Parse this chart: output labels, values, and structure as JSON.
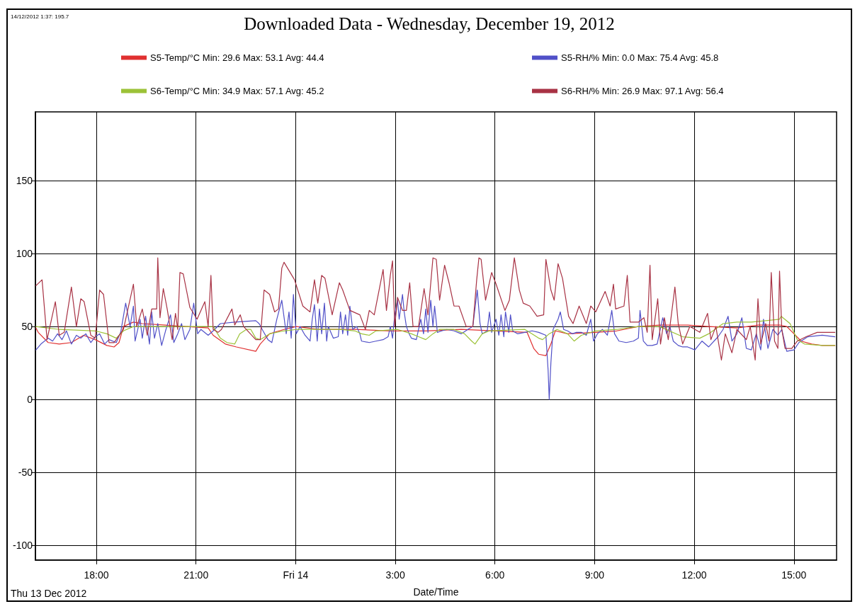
{
  "chart_data": {
    "type": "line",
    "title": "Downloaded Data - Wednesday, December 19, 2012",
    "xlabel": "Date/Time",
    "annotations": [
      "14/12/2012 1:37: 195.7",
      "Thu 13 Dec 2012"
    ],
    "xlim": [
      "2012-12-13T16:10",
      "2012-12-14T16:17"
    ],
    "xticks": [
      {
        "value": "2012-12-13T18:00",
        "label": "18:00"
      },
      {
        "value": "2012-12-13T21:00",
        "label": "21:00"
      },
      {
        "value": "2012-12-14T00:00",
        "label": "Fri 14"
      },
      {
        "value": "2012-12-14T03:00",
        "label": "3:00"
      },
      {
        "value": "2012-12-14T06:00",
        "label": "6:00"
      },
      {
        "value": "2012-12-14T09:00",
        "label": "9:00"
      },
      {
        "value": "2012-12-14T12:00",
        "label": "12:00"
      },
      {
        "value": "2012-12-14T15:00",
        "label": "15:00"
      }
    ],
    "ylim": [
      -110,
      197
    ],
    "yticks": [
      -100,
      -50,
      0,
      50,
      100,
      150
    ],
    "grid": true,
    "legend": "top",
    "line_style": "solid",
    "series": [
      {
        "name": "S5-Temp/°C Min: 29.6 Max: 53.1 Avg: 44.4",
        "color": "#e03030",
        "x": [
          "2012-12-13T16:11",
          "2012-12-13T16:15",
          "2012-12-13T16:33",
          "2012-12-13T16:53",
          "2012-12-13T17:15",
          "2012-12-13T17:37",
          "2012-12-13T17:58",
          "2012-12-13T18:19",
          "2012-12-13T18:32",
          "2012-12-13T18:41",
          "2012-12-13T18:49",
          "2012-12-13T19:07",
          "2012-12-13T19:23",
          "2012-12-13T20:05",
          "2012-12-13T20:40",
          "2012-12-13T21:22",
          "2012-12-13T21:31",
          "2012-12-13T21:53",
          "2012-12-13T22:13",
          "2012-12-13T22:48",
          "2012-12-13T22:56",
          "2012-12-13T23:13",
          "2012-12-13T23:39",
          "2012-12-14T00:01",
          "2012-12-14T00:43",
          "2012-12-14T01:47",
          "2012-12-14T02:51",
          "2012-12-14T03:55",
          "2012-12-14T04:59",
          "2012-12-14T06:02",
          "2012-12-14T06:58",
          "2012-12-14T07:10",
          "2012-12-14T07:19",
          "2012-12-14T07:32",
          "2012-12-14T07:41",
          "2012-12-14T07:49",
          "2012-12-14T08:11",
          "2012-12-14T09:02",
          "2012-12-14T09:40",
          "2012-12-14T10:19",
          "2012-12-14T10:57",
          "2012-12-14T11:48",
          "2012-12-14T12:26",
          "2012-12-14T13:17",
          "2012-12-14T13:56",
          "2012-12-14T14:34",
          "2012-12-14T14:47",
          "2012-12-14T15:00",
          "2012-12-14T15:13",
          "2012-12-14T15:32",
          "2012-12-14T15:51",
          "2012-12-14T16:14"
        ],
        "values": [
          49,
          46,
          39,
          38,
          39,
          44,
          41,
          37,
          36,
          39,
          50,
          53,
          52,
          51,
          50,
          49,
          44,
          38,
          36,
          33,
          38,
          45,
          48,
          50,
          48,
          48,
          47,
          47,
          48,
          47,
          46,
          35,
          31,
          30,
          38,
          47,
          45,
          46,
          47,
          50,
          51,
          51,
          50,
          49,
          51,
          51,
          50,
          45,
          40,
          38,
          37,
          37
        ]
      },
      {
        "name": "S5-RH/% Min: 0.0 Max: 75.4 Avg: 45.8",
        "color": "#5050c8",
        "x": [
          "2012-12-13T16:11",
          "2012-12-13T16:20",
          "2012-12-13T16:33",
          "2012-12-13T16:41",
          "2012-12-13T16:50",
          "2012-12-13T16:58",
          "2012-12-13T17:06",
          "2012-12-13T17:15",
          "2012-12-13T17:24",
          "2012-12-13T17:32",
          "2012-12-13T17:41",
          "2012-12-13T17:50",
          "2012-12-13T17:58",
          "2012-12-13T18:06",
          "2012-12-13T18:15",
          "2012-12-13T18:23",
          "2012-12-13T18:36",
          "2012-12-13T18:44",
          "2012-12-13T18:53",
          "2012-12-13T19:01",
          "2012-12-13T19:07",
          "2012-12-13T19:10",
          "2012-12-13T19:19",
          "2012-12-13T19:23",
          "2012-12-13T19:29",
          "2012-12-13T19:36",
          "2012-12-13T19:40",
          "2012-12-13T19:45",
          "2012-12-13T19:51",
          "2012-12-13T19:58",
          "2012-12-13T20:05",
          "2012-12-13T20:14",
          "2012-12-13T20:20",
          "2012-12-13T20:27",
          "2012-12-13T20:34",
          "2012-12-13T20:40",
          "2012-12-13T20:49",
          "2012-12-13T20:56",
          "2012-12-13T21:03",
          "2012-12-13T21:09",
          "2012-12-13T21:22",
          "2012-12-13T21:31",
          "2012-12-13T21:44",
          "2012-12-13T22:10",
          "2012-12-13T22:48",
          "2012-12-13T22:54",
          "2012-12-13T23:01",
          "2012-12-13T23:10",
          "2012-12-13T23:17",
          "2012-12-13T23:26",
          "2012-12-13T23:35",
          "2012-12-13T23:43",
          "2012-12-13T23:48",
          "2012-12-13T23:52",
          "2012-12-13T23:56",
          "2012-12-14T00:01",
          "2012-12-14T00:08",
          "2012-12-14T00:17",
          "2012-12-14T00:26",
          "2012-12-14T00:30",
          "2012-12-14T00:34",
          "2012-12-14T00:39",
          "2012-12-14T00:43",
          "2012-12-14T00:47",
          "2012-12-14T00:52",
          "2012-12-14T00:56",
          "2012-12-14T00:59",
          "2012-12-14T01:08",
          "2012-12-14T01:17",
          "2012-12-14T01:21",
          "2012-12-14T01:25",
          "2012-12-14T01:30",
          "2012-12-14T01:34",
          "2012-12-14T01:38",
          "2012-12-14T01:43",
          "2012-12-14T01:50",
          "2012-12-14T01:56",
          "2012-12-14T01:59",
          "2012-12-14T02:13",
          "2012-12-14T02:25",
          "2012-12-14T02:38",
          "2012-12-14T02:47",
          "2012-12-14T02:51",
          "2012-12-14T02:55",
          "2012-12-14T02:59",
          "2012-12-14T03:04",
          "2012-12-14T03:07",
          "2012-12-14T03:13",
          "2012-12-14T03:16",
          "2012-12-14T03:20",
          "2012-12-14T03:25",
          "2012-12-14T03:29",
          "2012-12-14T03:38",
          "2012-12-14T03:46",
          "2012-12-14T03:51",
          "2012-12-14T03:55",
          "2012-12-14T03:59",
          "2012-12-14T04:04",
          "2012-12-14T04:08",
          "2012-12-14T04:11",
          "2012-12-14T04:16",
          "2012-12-14T04:24",
          "2012-12-14T04:33",
          "2012-12-14T04:46",
          "2012-12-14T04:59",
          "2012-12-14T05:11",
          "2012-12-14T05:20",
          "2012-12-14T05:28",
          "2012-12-14T05:33",
          "2012-12-14T05:37",
          "2012-12-14T05:46",
          "2012-12-14T05:50",
          "2012-12-14T05:54",
          "2012-12-14T06:02",
          "2012-12-14T06:07",
          "2012-12-14T06:11",
          "2012-12-14T06:16",
          "2012-12-14T06:19",
          "2012-12-14T06:25",
          "2012-12-14T06:28",
          "2012-12-14T06:32",
          "2012-12-14T06:41",
          "2012-12-14T06:54",
          "2012-12-14T07:07",
          "2012-12-14T07:19",
          "2012-12-14T07:32",
          "2012-12-14T07:36",
          "2012-12-14T07:38",
          "2012-12-14T07:41",
          "2012-12-14T07:45",
          "2012-12-14T07:54",
          "2012-12-14T07:58",
          "2012-12-14T08:04",
          "2012-12-14T08:11",
          "2012-12-14T08:20",
          "2012-12-14T08:27",
          "2012-12-14T08:36",
          "2012-12-14T08:45",
          "2012-12-14T08:53",
          "2012-12-14T08:58",
          "2012-12-14T09:05",
          "2012-12-14T09:14",
          "2012-12-14T09:23",
          "2012-12-14T09:31",
          "2012-12-14T09:36",
          "2012-12-14T09:44",
          "2012-12-14T09:57",
          "2012-12-14T10:10",
          "2012-12-14T10:19",
          "2012-12-14T10:22",
          "2012-12-14T10:28",
          "2012-12-14T10:35",
          "2012-12-14T10:44",
          "2012-12-14T10:53",
          "2012-12-14T11:03",
          "2012-12-14T11:10",
          "2012-12-14T11:16",
          "2012-12-14T11:22",
          "2012-12-14T11:31",
          "2012-12-14T11:39",
          "2012-12-14T11:48",
          "2012-12-14T12:01",
          "2012-12-14T12:14",
          "2012-12-14T12:26",
          "2012-12-14T12:43",
          "2012-12-14T12:52",
          "2012-12-14T13:01",
          "2012-12-14T13:08",
          "2012-12-14T13:17",
          "2012-12-14T13:26",
          "2012-12-14T13:34",
          "2012-12-14T13:43",
          "2012-12-14T13:52",
          "2012-12-14T14:00",
          "2012-12-14T14:05",
          "2012-12-14T14:13",
          "2012-12-14T14:22",
          "2012-12-14T14:31",
          "2012-12-14T14:38",
          "2012-12-14T14:47",
          "2012-12-14T15:00",
          "2012-12-14T15:09",
          "2012-12-14T15:25",
          "2012-12-14T15:51",
          "2012-12-14T16:14"
        ],
        "values": [
          34,
          38,
          42,
          40,
          45,
          41,
          47,
          38,
          44,
          42,
          45,
          39,
          43,
          45,
          38,
          41,
          39,
          46,
          66,
          50,
          64,
          40,
          55,
          42,
          57,
          38,
          60,
          42,
          52,
          37,
          47,
          58,
          39,
          45,
          52,
          41,
          48,
          66,
          45,
          48,
          44,
          47,
          52,
          53,
          54,
          52,
          47,
          41,
          39,
          55,
          68,
          45,
          60,
          42,
          72,
          45,
          50,
          44,
          40,
          55,
          65,
          40,
          62,
          45,
          66,
          40,
          50,
          42,
          43,
          60,
          45,
          58,
          44,
          64,
          48,
          50,
          45,
          40,
          39,
          40,
          41,
          43,
          50,
          42,
          58,
          68,
          55,
          72,
          60,
          50,
          45,
          42,
          41,
          55,
          45,
          62,
          46,
          68,
          50,
          64,
          46,
          47,
          48,
          47,
          45,
          48,
          50,
          75,
          52,
          45,
          47,
          60,
          46,
          55,
          44,
          58,
          43,
          60,
          46,
          58,
          47,
          45,
          46,
          47,
          46,
          44,
          20,
          0,
          25,
          48,
          55,
          60,
          48,
          47,
          45,
          46,
          46,
          44,
          55,
          40,
          45,
          48,
          44,
          61,
          45,
          40,
          39,
          40,
          42,
          61,
          40,
          37,
          37,
          38,
          56,
          45,
          50,
          40,
          37,
          36,
          36,
          34,
          40,
          36,
          43,
          48,
          57,
          40,
          45,
          56,
          35,
          34,
          45,
          34,
          55,
          35,
          48,
          44,
          48,
          33,
          34,
          39,
          43,
          44,
          43
        ]
      },
      {
        "name": "S6-Temp/°C Min: 34.9 Max: 57.1 Avg: 45.2",
        "color": "#9cc238",
        "x": [
          "2012-12-13T16:11",
          "2012-12-13T16:53",
          "2012-12-13T17:58",
          "2012-12-13T18:19",
          "2012-12-13T18:36",
          "2012-12-13T18:49",
          "2012-12-13T19:07",
          "2012-12-13T21:31",
          "2012-12-13T21:44",
          "2012-12-13T21:56",
          "2012-12-13T22:10",
          "2012-12-13T22:19",
          "2012-12-13T22:31",
          "2012-12-13T22:39",
          "2012-12-13T22:48",
          "2012-12-13T22:56",
          "2012-12-13T23:13",
          "2012-12-13T23:39",
          "2012-12-14T00:01",
          "2012-12-14T01:21",
          "2012-12-14T01:47",
          "2012-12-14T01:59",
          "2012-12-14T02:13",
          "2012-12-14T02:25",
          "2012-12-14T03:04",
          "2012-12-14T03:29",
          "2012-12-14T03:42",
          "2012-12-14T03:55",
          "2012-12-14T04:08",
          "2012-12-14T04:20",
          "2012-12-14T04:46",
          "2012-12-14T05:05",
          "2012-12-14T05:18",
          "2012-12-14T05:24",
          "2012-12-14T05:37",
          "2012-12-14T05:50",
          "2012-12-14T06:54",
          "2012-12-14T07:07",
          "2012-12-14T07:19",
          "2012-12-14T07:26",
          "2012-12-14T07:38",
          "2012-12-14T07:52",
          "2012-12-14T08:11",
          "2012-12-14T08:23",
          "2012-12-14T08:36",
          "2012-12-14T09:02",
          "2012-12-14T09:40",
          "2012-12-14T10:19",
          "2012-12-14T10:57",
          "2012-12-14T11:39",
          "2012-12-14T12:10",
          "2012-12-14T12:26",
          "2012-12-14T12:52",
          "2012-12-14T13:17",
          "2012-12-14T13:43",
          "2012-12-14T14:09",
          "2012-12-14T14:34",
          "2012-12-14T14:37",
          "2012-12-14T14:53",
          "2012-12-14T15:06",
          "2012-12-14T15:19",
          "2012-12-14T15:51",
          "2012-12-14T16:14"
        ],
        "values": [
          50,
          48,
          47,
          45,
          42,
          47,
          50,
          50,
          42,
          39,
          38,
          45,
          48,
          48,
          42,
          41,
          45,
          47,
          48,
          48,
          47,
          45,
          44,
          47,
          48,
          45,
          43,
          41,
          45,
          48,
          48,
          45,
          40,
          38,
          45,
          47,
          48,
          45,
          42,
          41,
          45,
          48,
          45,
          40,
          44,
          47,
          48,
          50,
          50,
          43,
          42,
          45,
          52,
          53,
          53,
          54,
          55,
          57,
          52,
          41,
          38,
          37,
          37
        ]
      },
      {
        "name": "S6-RH/% Min: 26.9 Max: 97.1 Avg: 56.4",
        "color": "#a83244",
        "x": [
          "2012-12-13T16:11",
          "2012-12-13T16:22",
          "2012-12-13T16:31",
          "2012-12-13T16:46",
          "2012-12-13T16:53",
          "2012-12-13T17:02",
          "2012-12-13T17:15",
          "2012-12-13T17:24",
          "2012-12-13T17:32",
          "2012-12-13T17:38",
          "2012-12-13T17:50",
          "2012-12-13T17:58",
          "2012-12-13T18:06",
          "2012-12-13T18:13",
          "2012-12-13T18:23",
          "2012-12-13T18:32",
          "2012-12-13T18:49",
          "2012-12-13T19:07",
          "2012-12-13T19:13",
          "2012-12-13T19:23",
          "2012-12-13T19:32",
          "2012-12-13T19:40",
          "2012-12-13T19:49",
          "2012-12-13T19:51",
          "2012-12-13T19:55",
          "2012-12-13T20:01",
          "2012-12-13T20:08",
          "2012-12-13T20:17",
          "2012-12-13T20:23",
          "2012-12-13T20:27",
          "2012-12-13T20:31",
          "2012-12-13T20:37",
          "2012-12-13T20:49",
          "2012-12-13T21:02",
          "2012-12-13T21:16",
          "2012-12-13T21:22",
          "2012-12-13T21:27",
          "2012-12-13T21:31",
          "2012-12-13T21:40",
          "2012-12-13T21:46",
          "2012-12-13T22:05",
          "2012-12-13T22:10",
          "2012-12-13T22:20",
          "2012-12-13T22:26",
          "2012-12-13T22:48",
          "2012-12-13T22:56",
          "2012-12-13T23:03",
          "2012-12-13T23:13",
          "2012-12-13T23:22",
          "2012-12-13T23:29",
          "2012-12-13T23:35",
          "2012-12-13T23:39",
          "2012-12-13T23:58",
          "2012-12-14T00:13",
          "2012-12-14T00:26",
          "2012-12-14T00:34",
          "2012-12-14T00:40",
          "2012-12-14T00:47",
          "2012-12-14T00:53",
          "2012-12-14T01:06",
          "2012-12-14T01:19",
          "2012-12-14T01:25",
          "2012-12-14T01:38",
          "2012-12-14T01:56",
          "2012-12-14T02:06",
          "2012-12-14T02:13",
          "2012-12-14T02:22",
          "2012-12-14T02:38",
          "2012-12-14T02:44",
          "2012-12-14T02:51",
          "2012-12-14T02:55",
          "2012-12-14T02:59",
          "2012-12-14T03:04",
          "2012-12-14T03:13",
          "2012-12-14T03:20",
          "2012-12-14T03:26",
          "2012-12-14T03:32",
          "2012-12-14T03:42",
          "2012-12-14T03:52",
          "2012-12-14T03:59",
          "2012-12-14T04:08",
          "2012-12-14T04:14",
          "2012-12-14T04:20",
          "2012-12-14T04:29",
          "2012-12-14T04:37",
          "2012-12-14T04:46",
          "2012-12-14T04:55",
          "2012-12-14T05:08",
          "2012-12-14T05:20",
          "2012-12-14T05:27",
          "2012-12-14T05:31",
          "2012-12-14T05:35",
          "2012-12-14T05:43",
          "2012-12-14T05:54",
          "2012-12-14T06:02",
          "2012-12-14T06:18",
          "2012-12-14T06:26",
          "2012-12-14T06:35",
          "2012-12-14T06:44",
          "2012-12-14T06:51",
          "2012-12-14T07:03",
          "2012-12-14T07:16",
          "2012-12-14T07:28",
          "2012-12-14T07:32",
          "2012-12-14T07:41",
          "2012-12-14T07:47",
          "2012-12-14T07:54",
          "2012-12-14T08:02",
          "2012-12-14T08:13",
          "2012-12-14T08:21",
          "2012-12-14T08:32",
          "2012-12-14T08:45",
          "2012-12-14T08:53",
          "2012-12-14T09:02",
          "2012-12-14T09:19",
          "2012-12-14T09:28",
          "2012-12-14T09:34",
          "2012-12-14T09:38",
          "2012-12-14T09:53",
          "2012-12-14T09:59",
          "2012-12-14T10:04",
          "2012-12-14T10:19",
          "2012-12-14T10:29",
          "2012-12-14T10:35",
          "2012-12-14T10:40",
          "2012-12-14T10:44",
          "2012-12-14T10:54",
          "2012-12-14T10:59",
          "2012-12-14T11:06",
          "2012-12-14T11:13",
          "2012-12-14T11:25",
          "2012-12-14T11:31",
          "2012-12-14T11:39",
          "2012-12-14T11:52",
          "2012-12-14T12:10",
          "2012-12-14T12:24",
          "2012-12-14T12:30",
          "2012-12-14T12:39",
          "2012-12-14T12:49",
          "2012-12-14T12:56",
          "2012-12-14T13:08",
          "2012-12-14T13:17",
          "2012-12-14T13:34",
          "2012-12-14T13:41",
          "2012-12-14T13:50",
          "2012-12-14T13:55",
          "2012-12-14T14:00",
          "2012-12-14T14:09",
          "2012-12-14T14:15",
          "2012-12-14T14:19",
          "2012-12-14T14:25",
          "2012-12-14T14:31",
          "2012-12-14T14:34",
          "2012-12-14T14:38",
          "2012-12-14T14:44",
          "2012-12-14T14:56",
          "2012-12-14T15:06",
          "2012-12-14T15:22",
          "2012-12-14T15:42",
          "2012-12-14T16:14"
        ],
        "values": [
          78,
          82,
          41,
          67,
          44,
          46,
          77,
          50,
          69,
          67,
          44,
          42,
          75,
          72,
          39,
          39,
          48,
          79,
          50,
          62,
          44,
          62,
          62,
          97,
          56,
          76,
          62,
          41,
          59,
          48,
          87,
          86,
          63,
          55,
          67,
          50,
          85,
          48,
          46,
          48,
          62,
          51,
          58,
          50,
          41,
          41,
          75,
          72,
          60,
          62,
          90,
          94,
          82,
          64,
          60,
          82,
          66,
          85,
          83,
          58,
          80,
          75,
          61,
          58,
          48,
          61,
          58,
          89,
          61,
          85,
          95,
          50,
          70,
          61,
          61,
          80,
          50,
          50,
          76,
          58,
          97,
          96,
          68,
          92,
          80,
          64,
          64,
          50,
          50,
          82,
          97,
          96,
          68,
          87,
          79,
          61,
          68,
          97,
          75,
          66,
          64,
          57,
          58,
          96,
          75,
          68,
          93,
          83,
          57,
          52,
          64,
          52,
          64,
          60,
          74,
          64,
          79,
          62,
          64,
          85,
          53,
          53,
          56,
          46,
          92,
          41,
          69,
          38,
          56,
          41,
          77,
          52,
          38,
          50,
          46,
          59,
          41,
          50,
          27,
          45,
          32,
          48,
          41,
          50,
          27,
          69,
          38,
          52,
          40,
          87,
          40,
          35,
          88,
          48,
          35,
          35,
          40,
          43,
          46,
          46
        ]
      }
    ]
  }
}
